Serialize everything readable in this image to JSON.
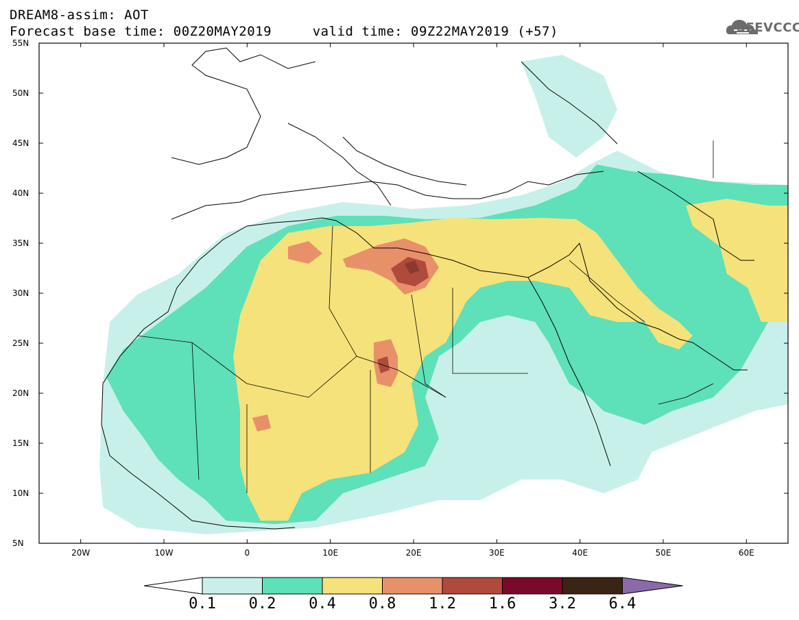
{
  "header": {
    "line1": "DREAM8-assim: AOT",
    "line2": "Forecast base time: 00Z20MAY2019     valid time: 09Z22MAY2019 (+57)"
  },
  "logo": {
    "text": "SEEVCCC",
    "icon": "cloud-logo-icon",
    "color": "#6b6b6b"
  },
  "map": {
    "variable": "AOT",
    "lon_range": [
      -25,
      65
    ],
    "lat_range": [
      5,
      55
    ],
    "lat_ticks": [
      "5N",
      "10N",
      "15N",
      "20N",
      "25N",
      "30N",
      "35N",
      "40N",
      "45N",
      "50N",
      "55N"
    ],
    "lon_ticks": [
      "20W",
      "10W",
      "0",
      "10E",
      "20E",
      "30E",
      "40E",
      "50E",
      "60E"
    ]
  },
  "colorbar": {
    "levels": [
      "0.1",
      "0.2",
      "0.4",
      "0.8",
      "1.2",
      "1.6",
      "3.2",
      "6.4"
    ],
    "colors": [
      "#ffffff",
      "#c8f0ea",
      "#5ee0b8",
      "#f5e27a",
      "#e8906a",
      "#b04a3a",
      "#7a0a2a",
      "#3a2414",
      "#8a6aa8"
    ]
  }
}
